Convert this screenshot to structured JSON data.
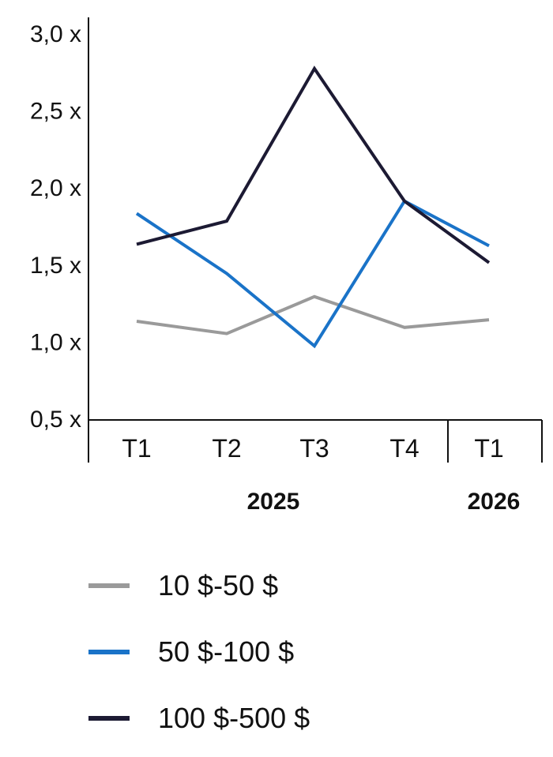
{
  "chart_data": {
    "type": "line",
    "categories": [
      "T1",
      "T2",
      "T3",
      "T4",
      "T1"
    ],
    "groups": [
      {
        "label": "2025",
        "span": [
          0,
          3
        ]
      },
      {
        "label": "2026",
        "span": [
          4,
          4
        ]
      }
    ],
    "yticks": [
      "3,0 x",
      "2,5 x",
      "2,0 x",
      "1,5 x",
      "1,0 x",
      "0,5 x"
    ],
    "ytick_values": [
      3.0,
      2.5,
      2.0,
      1.5,
      1.0,
      0.5
    ],
    "ylim": [
      0.5,
      3.0
    ],
    "series": [
      {
        "name": "10 $-50 $",
        "color": "#9a9a9a",
        "values": [
          1.13,
          1.05,
          1.29,
          1.09,
          1.14
        ]
      },
      {
        "name": "50 $-100 $",
        "color": "#1a73c8",
        "values": [
          1.83,
          1.44,
          0.97,
          1.91,
          1.62
        ]
      },
      {
        "name": "100 $-500 $",
        "color": "#1c1a33",
        "values": [
          1.63,
          1.78,
          2.77,
          1.91,
          1.51
        ]
      }
    ],
    "grid": false,
    "legend": "bottom-left"
  }
}
